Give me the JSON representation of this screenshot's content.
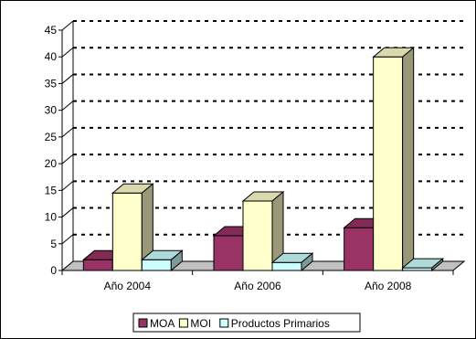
{
  "chart_data": {
    "type": "bar",
    "categories": [
      "Año 2004",
      "Año 2006",
      "Año 2008"
    ],
    "series": [
      {
        "name": "MOA",
        "values": [
          2,
          6.5,
          8
        ],
        "color": "#993366"
      },
      {
        "name": "MOI",
        "values": [
          14.5,
          13,
          40
        ],
        "color": "#ffffcc"
      },
      {
        "name": "Productos Primarios",
        "values": [
          2,
          1.5,
          0.5
        ],
        "color": "#ccffff"
      }
    ],
    "ylim": [
      0,
      45
    ],
    "yticks": [
      0,
      5,
      10,
      15,
      20,
      25,
      30,
      35,
      40,
      45
    ],
    "grid": "dashed horizontal",
    "legend_position": "bottom",
    "wall_color": "#ffffff"
  }
}
